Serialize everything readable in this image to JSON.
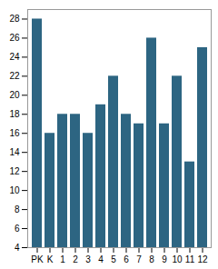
{
  "chart_data": {
    "type": "bar",
    "categories": [
      "PK",
      "K",
      "1",
      "2",
      "3",
      "4",
      "5",
      "6",
      "7",
      "8",
      "9",
      "10",
      "11",
      "12"
    ],
    "values": [
      28,
      16,
      18,
      18,
      16,
      19,
      22,
      18,
      17,
      26,
      17,
      22,
      13,
      25
    ],
    "color": "#2d6582",
    "ylim": [
      4,
      29
    ],
    "yticks": [
      4,
      6,
      8,
      10,
      12,
      14,
      16,
      18,
      20,
      22,
      24,
      26,
      28
    ],
    "grid": false
  }
}
